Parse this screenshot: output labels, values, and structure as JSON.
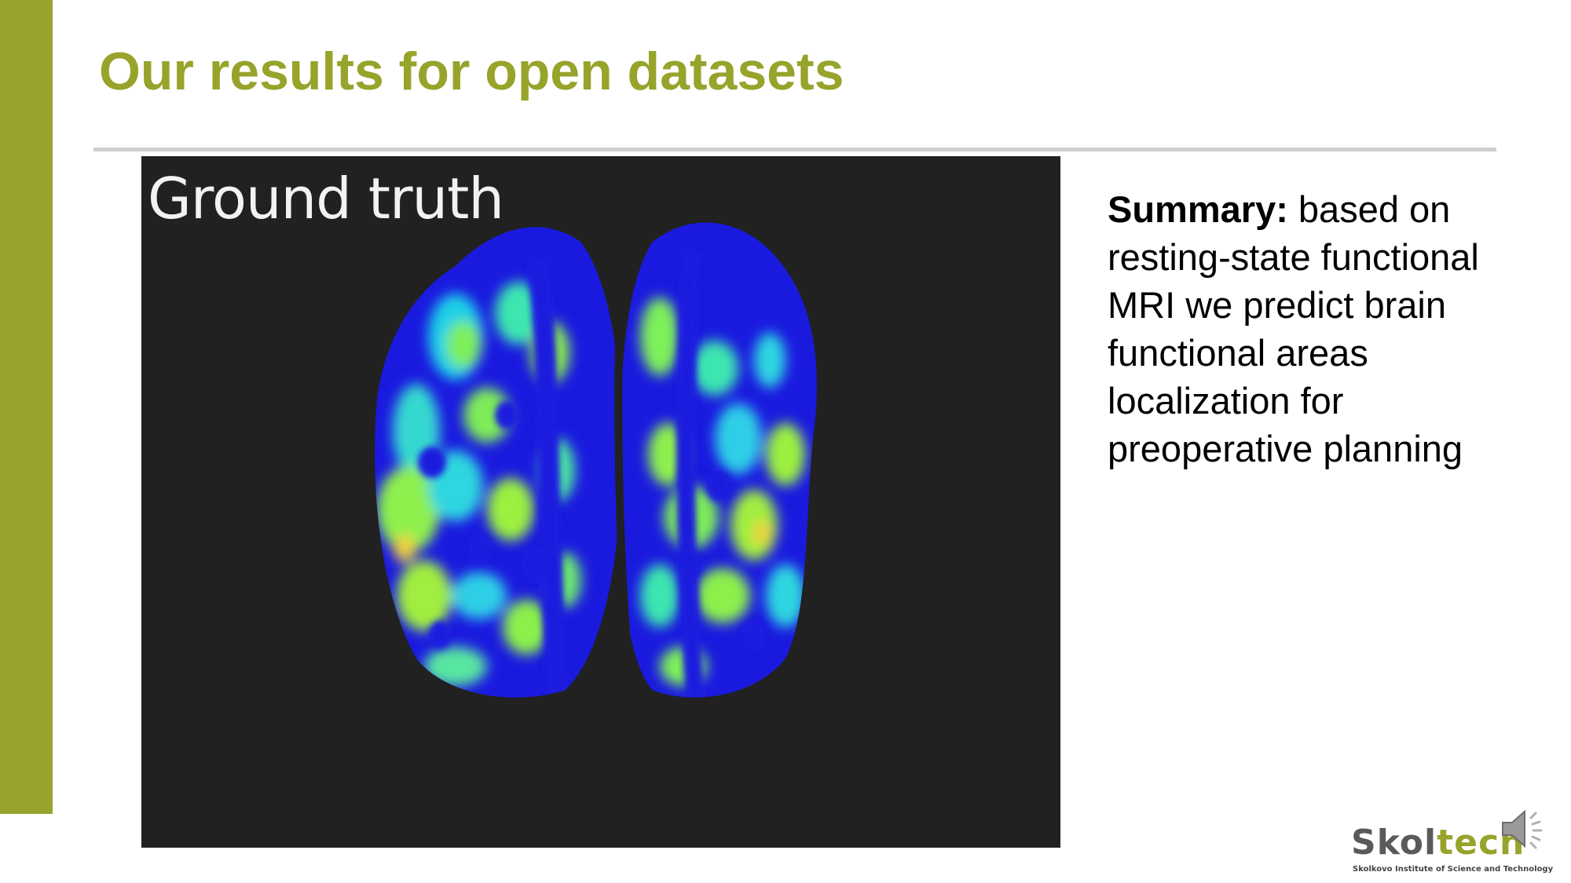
{
  "slide": {
    "title": "Our results for open datasets"
  },
  "figure": {
    "label": "Ground truth"
  },
  "summary": {
    "heading": "Summary:",
    "text": " based on resting-state functional MRI we predict brain functional areas localization for preoperative planning"
  },
  "logo": {
    "name_part1": "Skol",
    "name_part2": "tech",
    "subtitle": "Skolkovo Institute of Science and Technology"
  },
  "colors": {
    "accent": "#97a32a",
    "rule": "#cfcfcf",
    "figure_background": "#212121"
  },
  "icons": [
    "speaker-icon"
  ]
}
